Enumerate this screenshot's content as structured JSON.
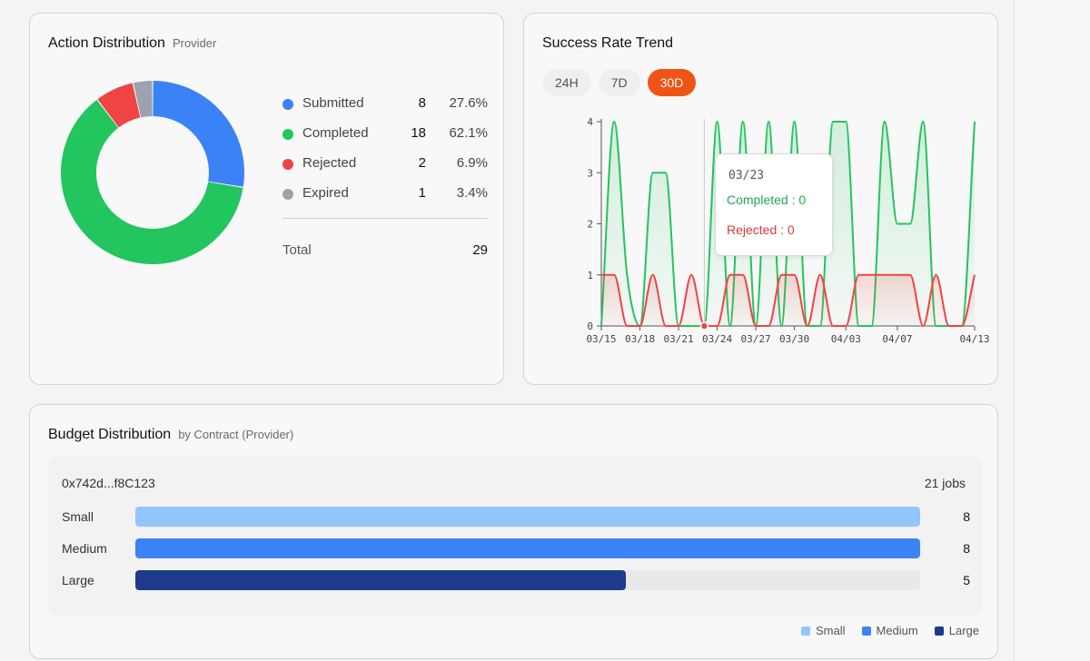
{
  "action_distribution": {
    "title": "Action Distribution",
    "subtitle": "Provider",
    "items": [
      {
        "label": "Submitted",
        "count": "8",
        "percent": "27.6%",
        "color": "#3b82f6"
      },
      {
        "label": "Completed",
        "count": "18",
        "percent": "62.1%",
        "color": "#22c55e"
      },
      {
        "label": "Rejected",
        "count": "2",
        "percent": "6.9%",
        "color": "#ef4444"
      },
      {
        "label": "Expired",
        "count": "1",
        "percent": "3.4%",
        "color": "#9ca3af"
      }
    ],
    "total_label": "Total",
    "total_value": "29"
  },
  "success_trend": {
    "title": "Success Rate Trend",
    "tabs": [
      {
        "label": "24H",
        "active": false
      },
      {
        "label": "7D",
        "active": false
      },
      {
        "label": "30D",
        "active": true
      }
    ],
    "tooltip": {
      "date": "03/23",
      "completed": "Completed : 0",
      "rejected": "Rejected : 0"
    }
  },
  "budget_distribution": {
    "title": "Budget Distribution",
    "subtitle": "by Contract (Provider)",
    "contract": {
      "address": "0x742d...f8C123",
      "jobs": "21 jobs",
      "rows": [
        {
          "label": "Small",
          "value": 8,
          "display": "8",
          "color": "#93c5fd"
        },
        {
          "label": "Medium",
          "value": 8,
          "display": "8",
          "color": "#3b82f6"
        },
        {
          "label": "Large",
          "value": 5,
          "display": "5",
          "color": "#1e3a8a"
        }
      ],
      "max": 8
    },
    "legend": [
      {
        "label": "Small",
        "color": "#93c5fd"
      },
      {
        "label": "Medium",
        "color": "#3b82f6"
      },
      {
        "label": "Large",
        "color": "#1e3a8a"
      }
    ]
  },
  "chart_data": [
    {
      "type": "pie",
      "title": "Action Distribution",
      "categories": [
        "Submitted",
        "Completed",
        "Rejected",
        "Expired"
      ],
      "values": [
        8,
        18,
        2,
        1
      ],
      "colors": [
        "#3b82f6",
        "#22c55e",
        "#ef4444",
        "#9ca3af"
      ],
      "donut": true
    },
    {
      "type": "area",
      "title": "Success Rate Trend",
      "x": [
        "03/15",
        "03/16",
        "03/17",
        "03/18",
        "03/19",
        "03/20",
        "03/21",
        "03/22",
        "03/23",
        "03/24",
        "03/25",
        "03/26",
        "03/27",
        "03/28",
        "03/29",
        "03/30",
        "03/31",
        "04/01",
        "04/02",
        "04/03",
        "04/04",
        "04/05",
        "04/06",
        "04/07",
        "04/08",
        "04/09",
        "04/10",
        "04/11",
        "04/12",
        "04/13"
      ],
      "x_ticks": [
        "03/15",
        "03/18",
        "03/21",
        "03/24",
        "03/27",
        "03/30",
        "04/03",
        "04/07",
        "04/13"
      ],
      "ylim": [
        0,
        4
      ],
      "y_ticks": [
        "0",
        "1",
        "2",
        "3",
        "4"
      ],
      "series": [
        {
          "name": "Completed",
          "color": "#22c55e",
          "values": [
            0,
            4,
            1,
            0,
            3,
            3,
            0,
            0,
            0,
            4,
            0,
            4,
            0,
            4,
            0,
            4,
            0,
            0,
            4,
            4,
            0,
            0,
            4,
            2,
            2,
            4,
            0,
            0,
            0,
            4
          ]
        },
        {
          "name": "Rejected",
          "color": "#ef4444",
          "values": [
            1,
            1,
            0,
            0,
            1,
            0,
            0,
            1,
            0,
            0,
            1,
            1,
            0,
            0,
            1,
            1,
            0,
            1,
            0,
            0,
            1,
            1,
            1,
            1,
            1,
            0,
            1,
            0,
            0,
            1
          ]
        }
      ],
      "tooltip_x": "03/23"
    },
    {
      "type": "bar",
      "title": "Budget Distribution",
      "categories": [
        "Small",
        "Medium",
        "Large"
      ],
      "values": [
        8,
        8,
        5
      ],
      "xlim": [
        0,
        8
      ],
      "orientation": "horizontal"
    }
  ]
}
